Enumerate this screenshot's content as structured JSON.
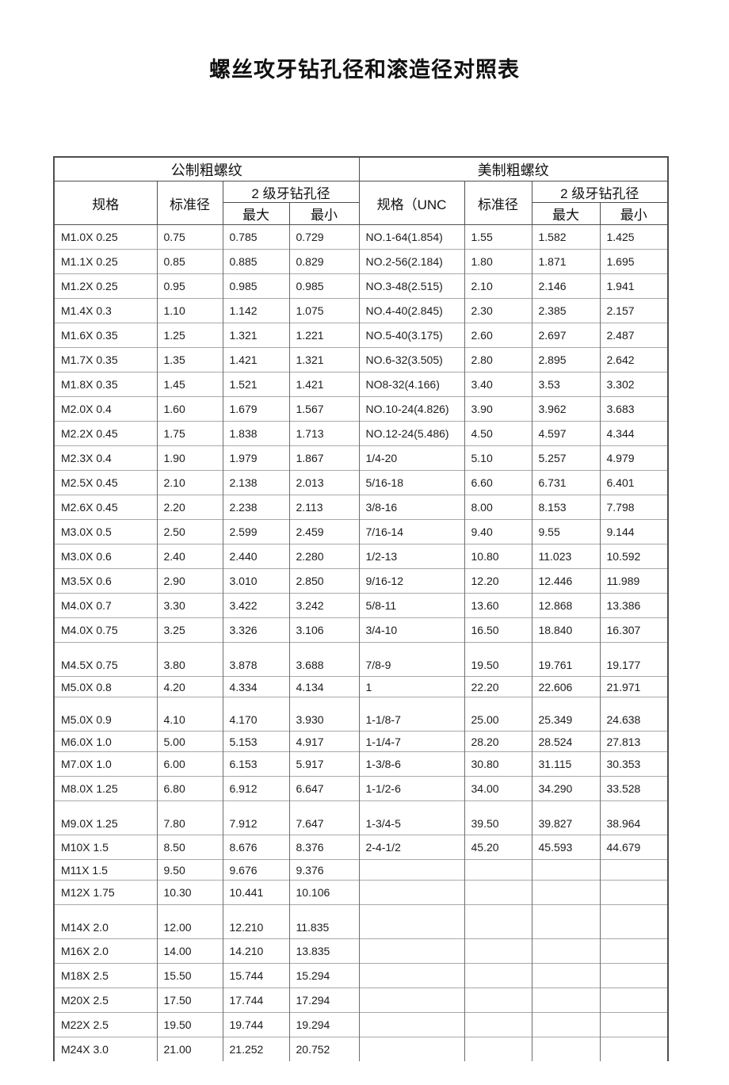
{
  "title": "螺丝攻牙钻孔径和滚造径对照表",
  "table": {
    "sections": [
      {
        "title": "公制粗螺纹",
        "spec_header": "规格",
        "standard_header": "标准径",
        "drill_header": "2 级牙钻孔径",
        "max_header": "最大",
        "min_header": "最小"
      },
      {
        "title": "美制粗螺纹",
        "spec_header": "规格（UNC",
        "standard_header": "标准径",
        "drill_header": "2 级牙钻孔径",
        "max_header": "最大",
        "min_header": "最小"
      }
    ],
    "rows": [
      {
        "metric": [
          "M1.0X 0.25",
          "0.75",
          "0.785",
          "0.729"
        ],
        "unc": [
          "NO.1-64(1.854)",
          "1.55",
          "1.582",
          "1.425"
        ]
      },
      {
        "metric": [
          "M1.1X 0.25",
          "0.85",
          "0.885",
          "0.829"
        ],
        "unc": [
          "NO.2-56(2.184)",
          "1.80",
          "1.871",
          "1.695"
        ]
      },
      {
        "metric": [
          "M1.2X 0.25",
          "0.95",
          "0.985",
          "0.985"
        ],
        "unc": [
          "NO.3-48(2.515)",
          "2.10",
          "2.146",
          "1.941"
        ]
      },
      {
        "metric": [
          "M1.4X 0.3",
          "1.10",
          "1.142",
          "1.075"
        ],
        "unc": [
          "NO.4-40(2.845)",
          "2.30",
          "2.385",
          "2.157"
        ]
      },
      {
        "metric": [
          "M1.6X 0.35",
          "1.25",
          "1.321",
          "1.221"
        ],
        "unc": [
          "NO.5-40(3.175)",
          "2.60",
          "2.697",
          "2.487"
        ]
      },
      {
        "metric": [
          "M1.7X 0.35",
          "1.35",
          "1.421",
          "1.321"
        ],
        "unc": [
          "NO.6-32(3.505)",
          "2.80",
          "2.895",
          "2.642"
        ]
      },
      {
        "metric": [
          "M1.8X 0.35",
          "1.45",
          "1.521",
          "1.421"
        ],
        "unc": [
          "NO8-32(4.166)",
          "3.40",
          "3.53",
          "3.302"
        ]
      },
      {
        "metric": [
          "M2.0X 0.4",
          "1.60",
          "1.679",
          "1.567"
        ],
        "unc": [
          "NO.10-24(4.826)",
          "3.90",
          "3.962",
          "3.683"
        ]
      },
      {
        "metric": [
          "M2.2X 0.45",
          "1.75",
          "1.838",
          "1.713"
        ],
        "unc": [
          "NO.12-24(5.486)",
          "4.50",
          "4.597",
          "4.344"
        ]
      },
      {
        "metric": [
          "M2.3X 0.4",
          "1.90",
          "1.979",
          "1.867"
        ],
        "unc": [
          "1/4-20",
          "5.10",
          "5.257",
          "4.979"
        ]
      },
      {
        "metric": [
          "M2.5X 0.45",
          "2.10",
          "2.138",
          "2.013"
        ],
        "unc": [
          "5/16-18",
          "6.60",
          "6.731",
          "6.401"
        ]
      },
      {
        "metric": [
          "M2.6X 0.45",
          "2.20",
          "2.238",
          "2.113"
        ],
        "unc": [
          "3/8-16",
          "8.00",
          "8.153",
          "7.798"
        ]
      },
      {
        "metric": [
          "M3.0X 0.5",
          "2.50",
          "2.599",
          "2.459"
        ],
        "unc": [
          "7/16-14",
          "9.40",
          "9.55",
          "9.144"
        ]
      },
      {
        "metric": [
          "M3.0X 0.6",
          "2.40",
          "2.440",
          "2.280"
        ],
        "unc": [
          "1/2-13",
          "10.80",
          "11.023",
          "10.592"
        ]
      },
      {
        "metric": [
          "M3.5X 0.6",
          "2.90",
          "3.010",
          "2.850"
        ],
        "unc": [
          "9/16-12",
          "12.20",
          "12.446",
          "11.989"
        ]
      },
      {
        "metric": [
          "M4.0X 0.7",
          "3.30",
          "3.422",
          "3.242"
        ],
        "unc": [
          "5/8-11",
          "13.60",
          "12.868",
          "13.386"
        ]
      },
      {
        "metric": [
          "M4.0X 0.75",
          "3.25",
          "3.326",
          "3.106"
        ],
        "unc": [
          "3/4-10",
          "16.50",
          "18.840",
          "16.307"
        ]
      },
      {
        "metric": [
          "M4.5X 0.75",
          "3.80",
          "3.878",
          "3.688"
        ],
        "unc": [
          "7/8-9",
          "19.50",
          "19.761",
          "19.177"
        ]
      },
      {
        "metric": [
          "M5.0X 0.8",
          "4.20",
          "4.334",
          "4.134"
        ],
        "unc": [
          "1",
          "22.20",
          "22.606",
          "21.971"
        ]
      },
      {
        "metric": [
          "M5.0X 0.9",
          "4.10",
          "4.170",
          "3.930"
        ],
        "unc": [
          "1-1/8-7",
          "25.00",
          "25.349",
          "24.638"
        ]
      },
      {
        "metric": [
          "M6.0X 1.0",
          "5.00",
          "5.153",
          "4.917"
        ],
        "unc": [
          "1-1/4-7",
          "28.20",
          "28.524",
          "27.813"
        ]
      },
      {
        "metric": [
          "M7.0X 1.0",
          "6.00",
          "6.153",
          "5.917"
        ],
        "unc": [
          "1-3/8-6",
          "30.80",
          "31.115",
          "30.353"
        ]
      },
      {
        "metric": [
          "M8.0X 1.25",
          "6.80",
          "6.912",
          "6.647"
        ],
        "unc": [
          "1-1/2-6",
          "34.00",
          "34.290",
          "33.528"
        ]
      },
      {
        "metric": [
          "M9.0X 1.25",
          "7.80",
          "7.912",
          "7.647"
        ],
        "unc": [
          "1-3/4-5",
          "39.50",
          "39.827",
          "38.964"
        ]
      },
      {
        "metric": [
          "M10X 1.5",
          "8.50",
          "8.676",
          "8.376"
        ],
        "unc": [
          "2-4-1/2",
          "45.20",
          "45.593",
          "44.679"
        ]
      },
      {
        "metric": [
          "M11X 1.5",
          "9.50",
          "9.676",
          "9.376"
        ],
        "unc": [
          "",
          "",
          "",
          ""
        ]
      },
      {
        "metric": [
          "M12X 1.75",
          "10.30",
          "10.441",
          "10.106"
        ],
        "unc": [
          "",
          "",
          "",
          ""
        ]
      },
      {
        "metric": [
          "M14X 2.0",
          "12.00",
          "12.210",
          "11.835"
        ],
        "unc": [
          "",
          "",
          "",
          ""
        ]
      },
      {
        "metric": [
          "M16X 2.0",
          "14.00",
          "14.210",
          "13.835"
        ],
        "unc": [
          "",
          "",
          "",
          ""
        ]
      },
      {
        "metric": [
          "M18X 2.5",
          "15.50",
          "15.744",
          "15.294"
        ],
        "unc": [
          "",
          "",
          "",
          ""
        ]
      },
      {
        "metric": [
          "M20X 2.5",
          "17.50",
          "17.744",
          "17.294"
        ],
        "unc": [
          "",
          "",
          "",
          ""
        ]
      },
      {
        "metric": [
          "M22X 2.5",
          "19.50",
          "19.744",
          "19.294"
        ],
        "unc": [
          "",
          "",
          "",
          ""
        ]
      },
      {
        "metric": [
          "M24X 3.0",
          "21.00",
          "21.252",
          "20.752"
        ],
        "unc": [
          "",
          "",
          "",
          ""
        ]
      }
    ]
  }
}
